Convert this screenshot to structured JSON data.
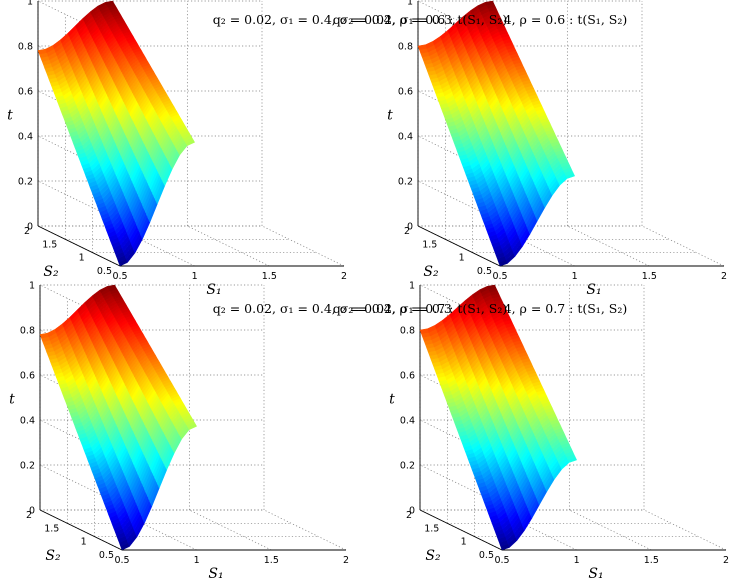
{
  "chart_data": [
    {
      "type": "surface",
      "title": "q₂ = 0.02, σ₁ = 0.3, σ₂ = 0.4, ρ = 0.6 :  t(S₁, S₂)",
      "xlabel": "S₁",
      "ylabel": "S₂",
      "zlabel": "t",
      "xlim": [
        0.5,
        2
      ],
      "ylim": [
        0.5,
        2
      ],
      "zlim": [
        0,
        1
      ],
      "x_ticks": [
        "0.5",
        "1",
        "1.5",
        "2"
      ],
      "y_ticks": [
        "0.5",
        "1",
        "1.5",
        "2"
      ],
      "z_ticks": [
        "0",
        "0.2",
        "0.4",
        "0.6",
        "0.8",
        "1"
      ],
      "grid": true,
      "colormap": "jet",
      "surface": {
        "x_range": [
          0.5,
          1.0
        ],
        "y_range": [
          0.5,
          2
        ],
        "t_at_x_min": [
          0,
          0.78
        ],
        "t_at_x_max": [
          0.55,
          1.0
        ]
      }
    },
    {
      "type": "surface",
      "title": "q₂ = 0.02, σ₁ = 0.4, σ₂ = 0.4, ρ = 0.6 :  t(S₁, S₂)",
      "xlabel": "S₁",
      "ylabel": "S₂",
      "zlabel": "t",
      "xlim": [
        0.5,
        2
      ],
      "ylim": [
        0.5,
        2
      ],
      "zlim": [
        0,
        1
      ],
      "x_ticks": [
        "0.5",
        "1",
        "1.5",
        "2"
      ],
      "y_ticks": [
        "0.5",
        "1",
        "1.5",
        "2"
      ],
      "z_ticks": [
        "0",
        "0.2",
        "0.4",
        "0.6",
        "0.8",
        "1"
      ],
      "grid": true,
      "colormap": "jet",
      "surface": {
        "x_range": [
          0.5,
          1.0
        ],
        "y_range": [
          0.5,
          2
        ],
        "t_at_x_min": [
          0,
          0.8
        ],
        "t_at_x_max": [
          0.4,
          1.0
        ]
      }
    },
    {
      "type": "surface",
      "title": "q₂ = 0.02, σ₁ = 0.3, σ₂ = 0.4, ρ = 0.7 :  t(S₁, S₂)",
      "xlabel": "S₁",
      "ylabel": "S₂",
      "zlabel": "t",
      "xlim": [
        0.5,
        2
      ],
      "ylim": [
        0.5,
        2
      ],
      "zlim": [
        0,
        1
      ],
      "x_ticks": [
        "0.5",
        "1",
        "1.5",
        "2"
      ],
      "y_ticks": [
        "0.5",
        "1",
        "1.5",
        "2"
      ],
      "z_ticks": [
        "0",
        "0.2",
        "0.4",
        "0.6",
        "0.8",
        "1"
      ],
      "grid": true,
      "colormap": "jet",
      "surface": {
        "x_range": [
          0.5,
          1.0
        ],
        "y_range": [
          0.5,
          2
        ],
        "t_at_x_min": [
          0,
          0.78
        ],
        "t_at_x_max": [
          0.55,
          1.0
        ]
      }
    },
    {
      "type": "surface",
      "title": "q₂ = 0.02, σ₁ = 0.4, σ₂ = 0.4, ρ = 0.7 :  t(S₁, S₂)",
      "xlabel": "S₁",
      "ylabel": "S₂",
      "zlabel": "t",
      "xlim": [
        0.5,
        2
      ],
      "ylim": [
        0.5,
        2
      ],
      "zlim": [
        0,
        1
      ],
      "x_ticks": [
        "0.5",
        "1",
        "1.5",
        "2"
      ],
      "y_ticks": [
        "0.5",
        "1",
        "1.5",
        "2"
      ],
      "z_ticks": [
        "0",
        "0.2",
        "0.4",
        "0.6",
        "0.8",
        "1"
      ],
      "grid": true,
      "colormap": "jet",
      "surface": {
        "x_range": [
          0.5,
          1.0
        ],
        "y_range": [
          0.5,
          2
        ],
        "t_at_x_min": [
          0,
          0.8
        ],
        "t_at_x_max": [
          0.4,
          1.0
        ]
      }
    }
  ]
}
